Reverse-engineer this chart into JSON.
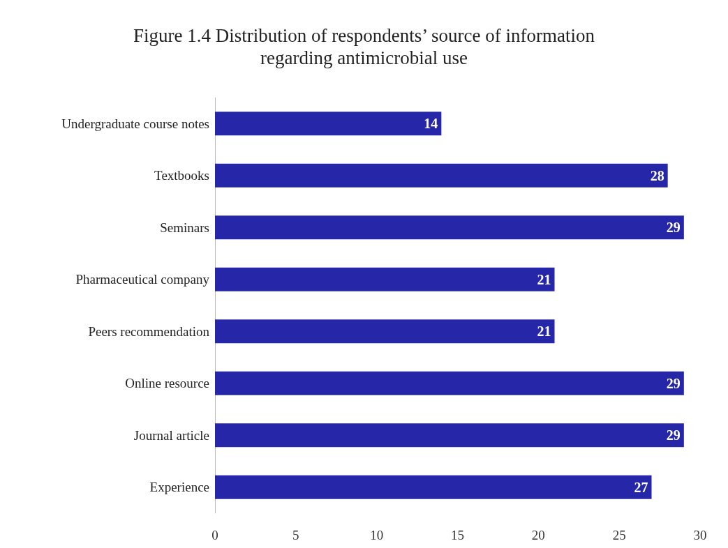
{
  "chart_data": {
    "type": "bar",
    "orientation": "horizontal",
    "title": "Figure 1.4 Distribution of respondents’ source of information\nregarding antimicrobial use",
    "categories": [
      "Undergraduate course notes",
      "Textbooks",
      "Seminars",
      "Pharmaceutical company",
      "Peers recommendation",
      "Online resource",
      "Journal article",
      "Experience"
    ],
    "values": [
      14,
      28,
      29,
      21,
      21,
      29,
      29,
      27
    ],
    "color": "#2626a8",
    "xlim": [
      0,
      30
    ],
    "xticks": [
      0,
      5,
      10,
      15,
      20,
      25,
      30
    ],
    "grid": false,
    "data_labels": true
  }
}
